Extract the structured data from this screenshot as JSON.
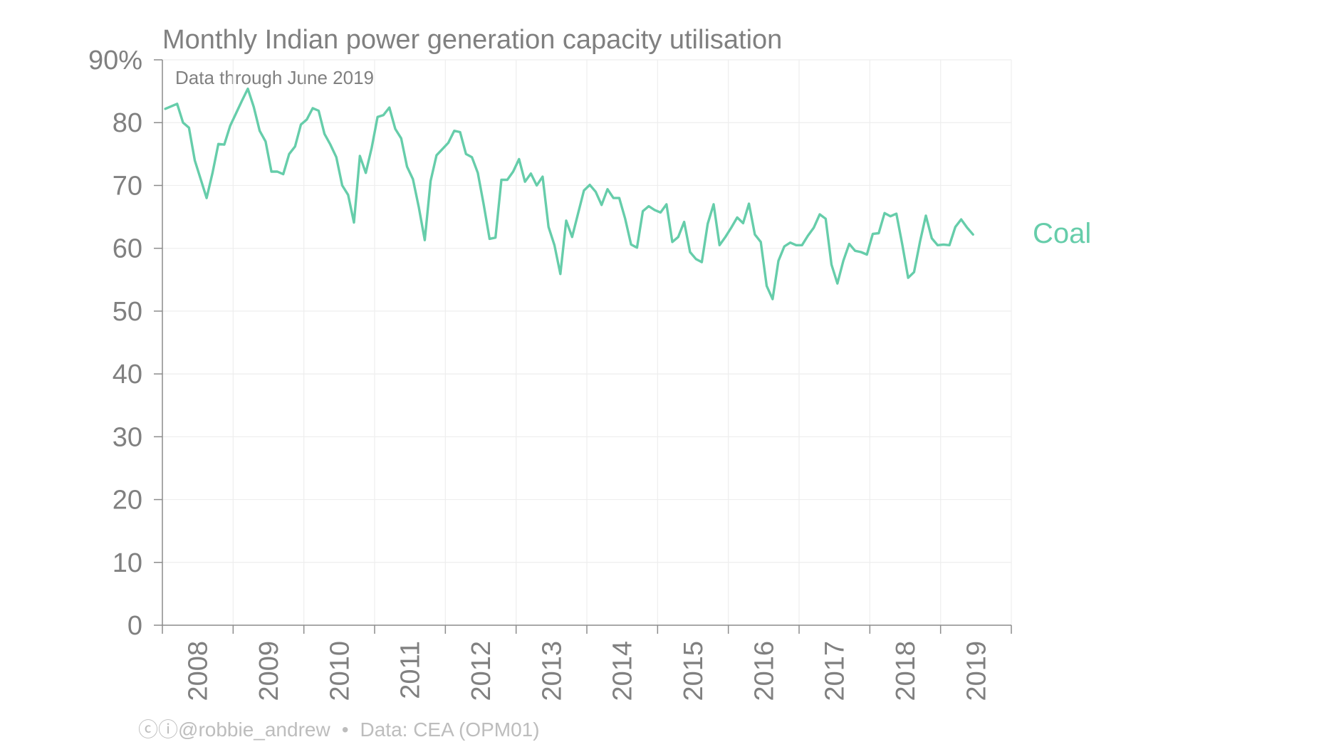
{
  "chart_data": {
    "type": "line",
    "title": "Monthly Indian power generation capacity utilisation",
    "subtitle": "Data through June 2019",
    "xlabel": "",
    "ylabel": "",
    "ylim": [
      0,
      90
    ],
    "yticks": [
      "0",
      "10",
      "20",
      "30",
      "40",
      "50",
      "60",
      "70",
      "80",
      "90%"
    ],
    "xticks": [
      "2008",
      "2009",
      "2010",
      "2011",
      "2012",
      "2013",
      "2014",
      "2015",
      "2016",
      "2017",
      "2018",
      "2019"
    ],
    "x_start": "2008-01",
    "x_end": "2019-06",
    "grid": true,
    "series": [
      {
        "name": "Coal",
        "color": "#66cdaa",
        "values": [
          82.2,
          82.6,
          83.0,
          80.0,
          79.2,
          74.0,
          71.0,
          68.0,
          72.0,
          76.6,
          76.5,
          79.5,
          81.5,
          83.5,
          85.4,
          82.5,
          78.7,
          77.0,
          72.2,
          72.2,
          71.8,
          75.0,
          76.2,
          79.7,
          80.5,
          82.3,
          81.9,
          78.2,
          76.5,
          74.5,
          70.0,
          68.5,
          64.1,
          74.7,
          72.0,
          76.0,
          80.9,
          81.2,
          82.4,
          79.0,
          77.5,
          73.0,
          71.0,
          66.5,
          61.3,
          70.7,
          74.8,
          75.8,
          76.8,
          78.7,
          78.5,
          75.0,
          74.5,
          72.0,
          67.0,
          61.5,
          61.7,
          70.9,
          70.9,
          72.2,
          74.2,
          70.6,
          71.9,
          70.0,
          71.4,
          63.4,
          60.5,
          55.9,
          64.4,
          61.8,
          65.5,
          69.2,
          70.1,
          69.0,
          66.9,
          69.4,
          68.0,
          68.0,
          64.7,
          60.6,
          60.1,
          65.9,
          66.7,
          66.1,
          65.7,
          67.0,
          61.0,
          61.8,
          64.2,
          59.4,
          58.3,
          57.8,
          63.9,
          67.0,
          60.5,
          61.8,
          63.3,
          64.9,
          64.0,
          67.1,
          62.2,
          61.0,
          54.0,
          51.9,
          58.0,
          60.3,
          60.9,
          60.5,
          60.5,
          62.0,
          63.3,
          65.4,
          64.7,
          57.4,
          54.4,
          58.0,
          60.7,
          59.6,
          59.4,
          59.0,
          62.3,
          62.4,
          65.6,
          65.1,
          65.5,
          60.6,
          55.3,
          56.2,
          61.0,
          65.2,
          61.6,
          60.5,
          60.6,
          60.5,
          63.4,
          64.6,
          63.3,
          62.2
        ]
      }
    ]
  },
  "footer": {
    "cc_icons": "ⓒⓘ",
    "author": "@robbie_andrew",
    "separator": "•",
    "source": "Data: CEA (OPM01)"
  }
}
